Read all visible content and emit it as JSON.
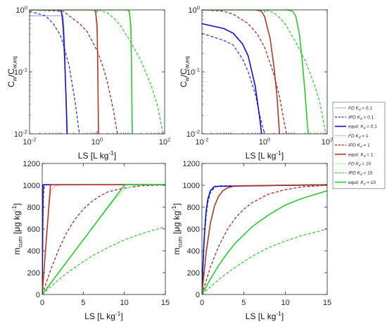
{
  "chart_data": [
    {
      "type": "line",
      "panel": "top-left",
      "xscale": "log",
      "yscale": "log",
      "xlim": [
        0.01,
        100
      ],
      "ylim": [
        0.01,
        1
      ],
      "xticks": [
        "10^{-2}",
        "10^{0}",
        "10^{2}"
      ],
      "yticks": [
        "10^{-2}",
        "10^{-1}",
        "10^{0}"
      ],
      "xlabel": "LS [L kg^{-1}]",
      "ylabel": "C_w/C_{w,eq}",
      "series": [
        {
          "legend": 0,
          "x": [
            0.01,
            0.05,
            0.08,
            0.1,
            0.11,
            0.125
          ],
          "y": [
            0.8,
            0.8,
            0.8,
            0.8,
            0.3,
            0.01
          ]
        },
        {
          "legend": 1,
          "x": [
            0.01,
            0.03,
            0.05,
            0.08,
            0.1,
            0.15,
            0.22,
            0.3
          ],
          "y": [
            0.95,
            0.8,
            0.6,
            0.4,
            0.28,
            0.12,
            0.035,
            0.01
          ]
        },
        {
          "legend": 2,
          "x": [
            0.01,
            0.08,
            0.09,
            0.1,
            0.11,
            0.12,
            0.13
          ],
          "y": [
            1,
            1,
            0.9,
            0.5,
            0.15,
            0.04,
            0.01
          ]
        },
        {
          "legend": 3,
          "x": [
            0.01,
            0.8,
            0.9,
            1.0,
            1.05,
            1.1
          ],
          "y": [
            1,
            1,
            0.9,
            0.4,
            0.08,
            0.01
          ]
        },
        {
          "legend": 4,
          "x": [
            0.01,
            0.1,
            0.3,
            0.5,
            0.8,
            1.0,
            1.5,
            2,
            3,
            4
          ],
          "y": [
            1,
            0.95,
            0.6,
            0.45,
            0.28,
            0.22,
            0.12,
            0.07,
            0.025,
            0.01
          ]
        },
        {
          "legend": 5,
          "x": [
            0.01,
            0.8,
            0.9,
            1.0,
            1.05,
            1.1
          ],
          "y": [
            1,
            1,
            0.95,
            0.55,
            0.1,
            0.01
          ]
        },
        {
          "legend": 6,
          "x": [
            0.01,
            8,
            9,
            10,
            10.5,
            11
          ],
          "y": [
            1,
            1,
            0.9,
            0.4,
            0.08,
            0.01
          ]
        },
        {
          "legend": 7,
          "x": [
            0.01,
            1,
            2,
            3,
            5,
            10,
            20,
            40,
            60,
            90
          ],
          "y": [
            1,
            1,
            0.9,
            0.75,
            0.55,
            0.3,
            0.15,
            0.06,
            0.03,
            0.01
          ]
        },
        {
          "legend": 8,
          "x": [
            0.01,
            8,
            9,
            10,
            10.5,
            11
          ],
          "y": [
            1,
            1,
            0.95,
            0.55,
            0.1,
            0.01
          ]
        }
      ]
    },
    {
      "type": "line",
      "panel": "top-right",
      "xscale": "log",
      "yscale": "log",
      "xlim": [
        0.01,
        100
      ],
      "ylim": [
        0.01,
        1
      ],
      "xticks": [
        "10^{-2}",
        "10^{0}",
        "10^{2}"
      ],
      "yticks": [
        "10^{-2}",
        "10^{-1}",
        "10^{0}"
      ],
      "xlabel": "LS [L kg^{-1}]",
      "ylabel": "C_w/C_{w,eq}",
      "series": [
        {
          "legend": 0,
          "x": [
            0.01,
            0.05,
            0.1,
            0.2,
            0.3,
            0.5,
            0.7,
            0.8
          ],
          "y": [
            0.6,
            0.5,
            0.42,
            0.28,
            0.18,
            0.06,
            0.018,
            0.01
          ]
        },
        {
          "legend": 1,
          "x": [
            0.01,
            0.03,
            0.05,
            0.1,
            0.2,
            0.3,
            0.5,
            0.7,
            0.9,
            1.0
          ],
          "y": [
            0.42,
            0.35,
            0.32,
            0.27,
            0.16,
            0.1,
            0.045,
            0.02,
            0.012,
            0.01
          ]
        },
        {
          "legend": 2,
          "x": [
            0.01,
            0.05,
            0.1,
            0.2,
            0.3,
            0.5,
            0.7,
            0.8
          ],
          "y": [
            0.6,
            0.5,
            0.42,
            0.28,
            0.18,
            0.06,
            0.018,
            0.01
          ]
        },
        {
          "legend": 3,
          "x": [
            0.01,
            0.5,
            0.8,
            1,
            1.5,
            2,
            2.5,
            3
          ],
          "y": [
            1,
            1,
            0.95,
            0.78,
            0.35,
            0.12,
            0.04,
            0.01
          ]
        },
        {
          "legend": 4,
          "x": [
            0.01,
            0.05,
            0.1,
            0.3,
            0.6,
            1,
            2,
            3,
            4,
            5
          ],
          "y": [
            1,
            0.95,
            0.85,
            0.6,
            0.4,
            0.25,
            0.09,
            0.04,
            0.018,
            0.01
          ]
        },
        {
          "legend": 5,
          "x": [
            0.01,
            0.5,
            0.8,
            1,
            1.5,
            2,
            2.5,
            3
          ],
          "y": [
            1,
            1,
            0.95,
            0.78,
            0.35,
            0.12,
            0.04,
            0.01
          ]
        },
        {
          "legend": 6,
          "x": [
            0.01,
            5,
            8,
            10,
            13,
            16,
            20,
            23,
            25
          ],
          "y": [
            1,
            1,
            0.95,
            0.78,
            0.4,
            0.15,
            0.04,
            0.015,
            0.01
          ]
        },
        {
          "legend": 7,
          "x": [
            0.01,
            1,
            2,
            3,
            5,
            10,
            20,
            40,
            60,
            90
          ],
          "y": [
            1,
            1,
            0.9,
            0.75,
            0.55,
            0.3,
            0.15,
            0.06,
            0.03,
            0.01
          ]
        },
        {
          "legend": 8,
          "x": [
            0.01,
            5,
            8,
            10,
            13,
            16,
            20,
            23,
            25
          ],
          "y": [
            1,
            1,
            0.95,
            0.78,
            0.4,
            0.15,
            0.04,
            0.015,
            0.01
          ]
        }
      ]
    },
    {
      "type": "line",
      "panel": "bottom-left",
      "xscale": "linear",
      "yscale": "linear",
      "xlim": [
        0,
        15
      ],
      "ylim": [
        0,
        1200
      ],
      "xticks": [
        "0",
        "5",
        "10",
        "15"
      ],
      "yticks": [
        "0",
        "200",
        "400",
        "600",
        "800",
        "1000",
        "1200"
      ],
      "xlabel": "LS [L kg^{-1}]",
      "ylabel": "m_{cum} [μg kg^{-1}]",
      "series": [
        {
          "legend": 0,
          "x": [
            0,
            0.03,
            0.06,
            0.08,
            0.1,
            0.15,
            15
          ],
          "y": [
            0,
            350,
            700,
            900,
            990,
            1005,
            1005
          ]
        },
        {
          "legend": 1,
          "x": [
            0,
            0.03,
            0.06,
            0.1,
            0.15,
            0.2,
            0.3,
            0.5,
            15
          ],
          "y": [
            0,
            300,
            550,
            780,
            900,
            960,
            990,
            1003,
            1005
          ]
        },
        {
          "legend": 2,
          "x": [
            0,
            0.05,
            0.1,
            0.12,
            15
          ],
          "y": [
            0,
            500,
            1000,
            1005,
            1005
          ]
        },
        {
          "legend": 3,
          "x": [
            0,
            0.3,
            0.6,
            0.9,
            1.1,
            1.5,
            2,
            3,
            15
          ],
          "y": [
            0,
            300,
            600,
            850,
            960,
            990,
            1000,
            1003,
            1005
          ]
        },
        {
          "legend": 4,
          "x": [
            0,
            1,
            2,
            3,
            4,
            5,
            6,
            7,
            8,
            10,
            12,
            15
          ],
          "y": [
            0,
            220,
            410,
            570,
            690,
            780,
            850,
            900,
            940,
            975,
            995,
            1003
          ]
        },
        {
          "legend": 5,
          "x": [
            0,
            0.5,
            1,
            1.05,
            15
          ],
          "y": [
            0,
            500,
            1000,
            1005,
            1005
          ]
        },
        {
          "legend": 6,
          "x": [
            0,
            2,
            4,
            6,
            8,
            9,
            10,
            11,
            12,
            15
          ],
          "y": [
            0,
            200,
            400,
            600,
            790,
            880,
            960,
            995,
            1003,
            1005
          ]
        },
        {
          "legend": 7,
          "x": [
            0,
            1,
            2,
            3,
            4,
            6,
            8,
            10,
            12,
            15
          ],
          "y": [
            0,
            70,
            135,
            195,
            250,
            350,
            430,
            500,
            555,
            620
          ]
        },
        {
          "legend": 8,
          "x": [
            0,
            2,
            4,
            6,
            8,
            10,
            10.5,
            15
          ],
          "y": [
            0,
            200,
            400,
            600,
            800,
            1000,
            1005,
            1005
          ]
        }
      ]
    },
    {
      "type": "line",
      "panel": "bottom-right",
      "xscale": "linear",
      "yscale": "linear",
      "xlim": [
        0,
        15
      ],
      "ylim": [
        0,
        1200
      ],
      "xticks": [
        "0",
        "5",
        "10",
        "15"
      ],
      "yticks": [
        "0",
        "200",
        "400",
        "600",
        "800",
        "1000",
        "1200"
      ],
      "xlabel": "LS [L kg^{-1}]",
      "ylabel": "m_{cum} [μg kg^{-1}]",
      "series": [
        {
          "legend": 0,
          "x": [
            0,
            0.1,
            0.2,
            0.3,
            0.5,
            0.7,
            1.0,
            1.5,
            15
          ],
          "y": [
            0,
            230,
            420,
            560,
            760,
            870,
            950,
            990,
            1005
          ]
        },
        {
          "legend": 1,
          "x": [
            0,
            0.1,
            0.2,
            0.3,
            0.5,
            0.7,
            1.0,
            1.5,
            2,
            15
          ],
          "y": [
            0,
            200,
            380,
            520,
            720,
            840,
            930,
            980,
            995,
            1000
          ]
        },
        {
          "legend": 2,
          "x": [
            0,
            0.1,
            0.2,
            0.3,
            0.5,
            0.7,
            1.0,
            1.5,
            15
          ],
          "y": [
            0,
            230,
            420,
            560,
            760,
            870,
            950,
            990,
            1005
          ]
        },
        {
          "legend": 3,
          "x": [
            0,
            0.5,
            1,
            1.5,
            2,
            2.5,
            3,
            4,
            15
          ],
          "y": [
            0,
            380,
            650,
            810,
            900,
            950,
            975,
            995,
            1005
          ]
        },
        {
          "legend": 4,
          "x": [
            0,
            1,
            2,
            3,
            4,
            5,
            6,
            8,
            10,
            12,
            15
          ],
          "y": [
            0,
            250,
            440,
            590,
            700,
            780,
            840,
            920,
            960,
            985,
            1000
          ]
        },
        {
          "legend": 5,
          "x": [
            0,
            0.5,
            1,
            1.5,
            2,
            2.5,
            3,
            4,
            15
          ],
          "y": [
            0,
            380,
            650,
            810,
            900,
            950,
            975,
            995,
            1005
          ]
        },
        {
          "legend": 6,
          "x": [
            0,
            1,
            2,
            3,
            4,
            6,
            8,
            10,
            12,
            15
          ],
          "y": [
            0,
            140,
            265,
            375,
            470,
            620,
            730,
            820,
            880,
            950
          ]
        },
        {
          "legend": 7,
          "x": [
            0,
            1,
            2,
            3,
            4,
            6,
            8,
            10,
            12,
            15
          ],
          "y": [
            0,
            70,
            135,
            195,
            250,
            350,
            430,
            490,
            540,
            600
          ]
        },
        {
          "legend": 8,
          "x": [
            0,
            1,
            2,
            3,
            4,
            6,
            8,
            10,
            12,
            15
          ],
          "y": [
            0,
            140,
            265,
            375,
            470,
            620,
            730,
            820,
            880,
            950
          ]
        }
      ]
    }
  ],
  "legend": {
    "placement": "right",
    "entries": [
      {
        "method": "FD",
        "kd": "0.1",
        "color": "#9aa6e8",
        "style": "solid"
      },
      {
        "method": "IPD",
        "kd": "0.1",
        "color": "#2f3fd0",
        "style": "dashed"
      },
      {
        "method": "equil.",
        "kd": "0.1",
        "color": "#1010c8",
        "style": "solid-thick"
      },
      {
        "method": "FD",
        "kd": "1",
        "color": "#f0a8a8",
        "style": "solid"
      },
      {
        "method": "IPD",
        "kd": "1",
        "color": "#a03030",
        "style": "dashed"
      },
      {
        "method": "equil.",
        "kd": "1",
        "color": "#b03a2a",
        "style": "solid-thick"
      },
      {
        "method": "FD",
        "kd": "10",
        "color": "#a8f0b0",
        "style": "solid"
      },
      {
        "method": "IPD",
        "kd": "10",
        "color": "#3ec83e",
        "style": "dashed"
      },
      {
        "method": "equil.",
        "kd": "10",
        "color": "#2ec82e",
        "style": "solid-thick"
      }
    ],
    "kd_symbol": "K",
    "kd_subscript": "d",
    "equals": " = "
  }
}
